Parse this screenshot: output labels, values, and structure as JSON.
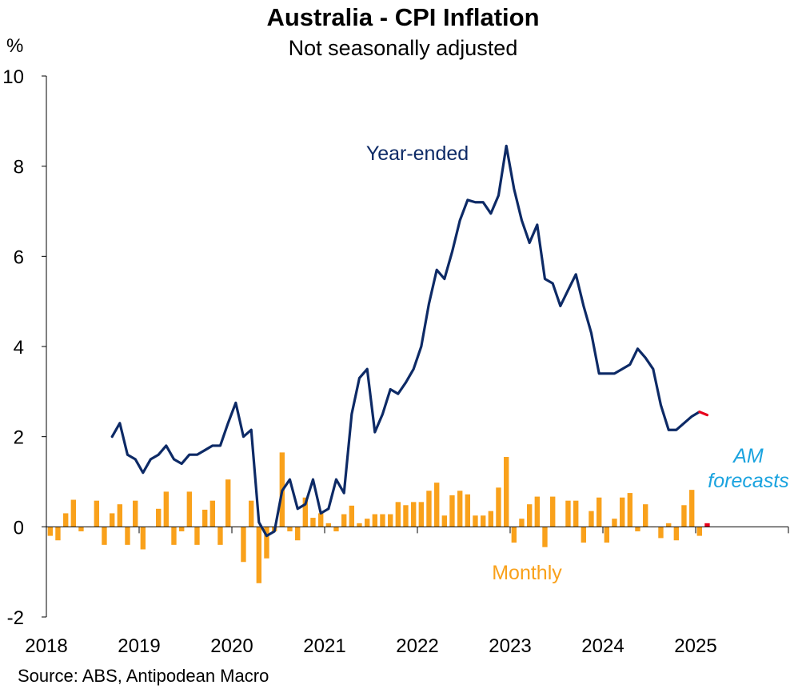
{
  "title": "Australia - CPI Inflation",
  "subtitle": "Not seasonally adjusted",
  "source": "Source: ABS, Antipodean Macro",
  "colors": {
    "year_ended": "#0d2a66",
    "monthly": "#f9a11b",
    "forecast": "#e8001c",
    "forecast_label": "#1aa3df",
    "axis": "#000000"
  },
  "chart_data": {
    "type": "line+bar",
    "title": "Australia - CPI Inflation",
    "subtitle": "Not seasonally adjusted",
    "ylabel": "%",
    "ylim": [
      -2,
      10
    ],
    "yticks": [
      "-2",
      "0",
      "2",
      "4",
      "6",
      "8",
      "10"
    ],
    "xlim": [
      2018.0,
      2026.0
    ],
    "xticks": [
      "2018",
      "2019",
      "2020",
      "2021",
      "2022",
      "2023",
      "2024",
      "2025"
    ],
    "annotations": {
      "year_ended": "Year-ended",
      "monthly": "Monthly",
      "forecast_line1": "AM",
      "forecast_line2": "forecasts"
    },
    "series": [
      {
        "name": "Year-ended",
        "x": [
          2018.667,
          2018.75,
          2018.833,
          2018.917,
          2019.0,
          2019.083,
          2019.167,
          2019.25,
          2019.333,
          2019.417,
          2019.5,
          2019.583,
          2019.667,
          2019.75,
          2019.833,
          2019.917,
          2020.0,
          2020.083,
          2020.167,
          2020.25,
          2020.333,
          2020.417,
          2020.5,
          2020.583,
          2020.667,
          2020.75,
          2020.833,
          2020.917,
          2021.0,
          2021.083,
          2021.167,
          2021.25,
          2021.333,
          2021.417,
          2021.5,
          2021.583,
          2021.667,
          2021.75,
          2021.833,
          2021.917,
          2022.0,
          2022.083,
          2022.167,
          2022.25,
          2022.333,
          2022.417,
          2022.5,
          2022.583,
          2022.667,
          2022.75,
          2022.833,
          2022.917,
          2023.0,
          2023.083,
          2023.167,
          2023.25,
          2023.333,
          2023.417,
          2023.5,
          2023.583,
          2023.667,
          2023.75,
          2023.833,
          2023.917,
          2024.0,
          2024.083,
          2024.167,
          2024.25,
          2024.333,
          2024.417,
          2024.5,
          2024.583,
          2024.667,
          2024.75,
          2024.833,
          2024.917,
          2025.0
        ],
        "values": [
          2.0,
          2.3,
          1.6,
          1.5,
          1.2,
          1.5,
          1.6,
          1.8,
          1.5,
          1.4,
          1.6,
          1.6,
          1.7,
          1.8,
          1.8,
          2.3,
          2.75,
          2.0,
          2.15,
          0.1,
          -0.2,
          -0.1,
          0.8,
          1.05,
          0.4,
          0.5,
          1.05,
          0.3,
          0.4,
          1.05,
          0.75,
          2.5,
          3.3,
          3.5,
          2.1,
          2.5,
          3.05,
          2.95,
          3.2,
          3.5,
          4.0,
          4.95,
          5.7,
          5.5,
          6.1,
          6.8,
          7.25,
          7.2,
          7.2,
          6.95,
          7.35,
          8.45,
          7.5,
          6.8,
          6.3,
          6.7,
          5.5,
          5.4,
          4.9,
          5.25,
          5.6,
          4.9,
          4.3,
          3.4,
          3.4,
          3.4,
          3.5,
          3.6,
          3.95,
          3.75,
          3.5,
          2.7,
          2.15,
          2.15,
          2.3,
          2.45,
          2.55
        ]
      },
      {
        "name": "Year-ended (AM forecast)",
        "x": [
          2025.0,
          2025.083
        ],
        "values": [
          2.55,
          2.48
        ]
      },
      {
        "name": "Monthly",
        "x": [
          2018.0,
          2018.083,
          2018.167,
          2018.25,
          2018.333,
          2018.417,
          2018.5,
          2018.583,
          2018.667,
          2018.75,
          2018.833,
          2018.917,
          2019.0,
          2019.083,
          2019.167,
          2019.25,
          2019.333,
          2019.417,
          2019.5,
          2019.583,
          2019.667,
          2019.75,
          2019.833,
          2019.917,
          2020.0,
          2020.083,
          2020.167,
          2020.25,
          2020.333,
          2020.417,
          2020.5,
          2020.583,
          2020.667,
          2020.75,
          2020.833,
          2020.917,
          2021.0,
          2021.083,
          2021.167,
          2021.25,
          2021.333,
          2021.417,
          2021.5,
          2021.583,
          2021.667,
          2021.75,
          2021.833,
          2021.917,
          2022.0,
          2022.083,
          2022.167,
          2022.25,
          2022.333,
          2022.417,
          2022.5,
          2022.583,
          2022.667,
          2022.75,
          2022.833,
          2022.917,
          2023.0,
          2023.083,
          2023.167,
          2023.25,
          2023.333,
          2023.417,
          2023.5,
          2023.583,
          2023.667,
          2023.75,
          2023.833,
          2023.917,
          2024.0,
          2024.083,
          2024.167,
          2024.25,
          2024.333,
          2024.417,
          2024.5,
          2024.583,
          2024.667,
          2024.75,
          2024.833,
          2024.917
        ],
        "values": [
          -0.2,
          -0.3,
          0.3,
          0.6,
          -0.1,
          0.0,
          0.58,
          -0.4,
          0.3,
          0.5,
          -0.4,
          0.58,
          -0.5,
          0.0,
          0.4,
          0.78,
          -0.4,
          -0.1,
          0.78,
          -0.4,
          0.38,
          0.58,
          -0.4,
          1.05,
          0.0,
          -0.78,
          0.58,
          -1.25,
          -0.7,
          -0.1,
          1.65,
          -0.1,
          -0.3,
          0.65,
          0.2,
          0.3,
          0.08,
          -0.1,
          0.28,
          0.47,
          0.08,
          0.18,
          0.28,
          0.28,
          0.28,
          0.55,
          0.48,
          0.55,
          0.55,
          0.8,
          0.98,
          0.25,
          0.7,
          0.8,
          0.72,
          0.25,
          0.25,
          0.35,
          0.87,
          1.55,
          -0.35,
          0.18,
          0.5,
          0.67,
          -0.45,
          0.67,
          0.0,
          0.58,
          0.58,
          -0.35,
          0.35,
          0.65,
          -0.35,
          0.18,
          0.65,
          0.75,
          -0.1,
          0.5,
          0.0,
          -0.25,
          0.08,
          -0.3,
          0.48,
          0.82
        ]
      },
      {
        "name": "Monthly (latest)",
        "x": [
          2025.0
        ],
        "values": [
          -0.2
        ]
      },
      {
        "name": "Monthly (AM forecast)",
        "x": [
          2025.083
        ],
        "values": [
          0.08
        ]
      }
    ]
  }
}
